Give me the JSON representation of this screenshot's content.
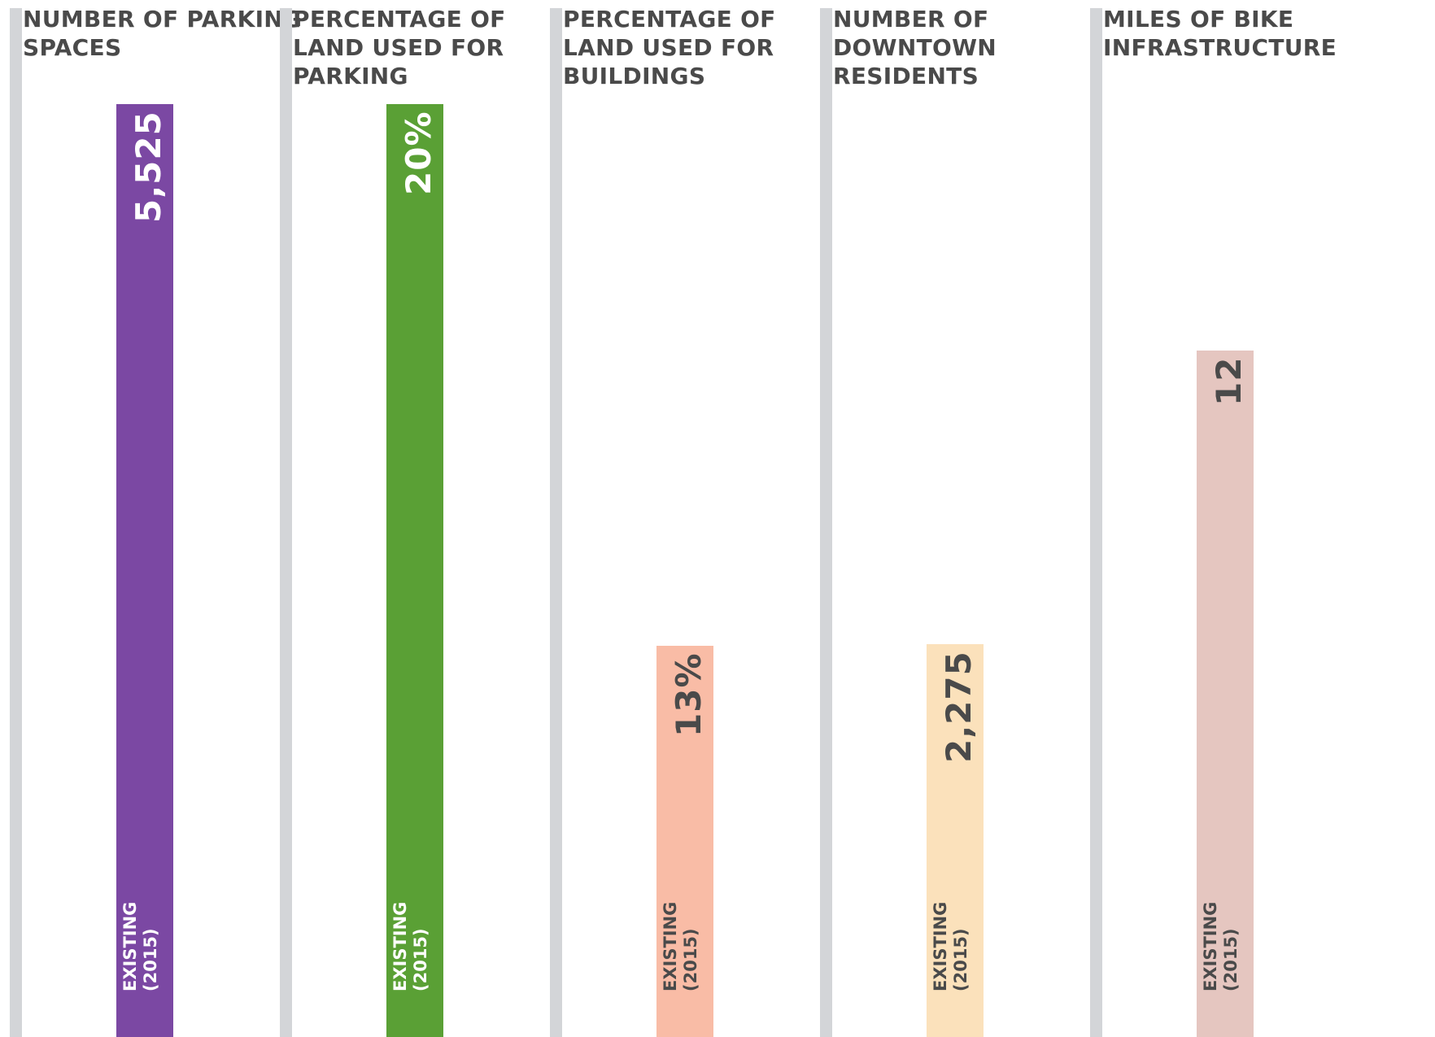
{
  "chart_data": [
    {
      "type": "bar",
      "title": "NUMBER OF PARKING SPACES",
      "categories": [
        "EXISTING (2015)"
      ],
      "values": [
        5525
      ],
      "value_label": "5,525",
      "ylim": [
        0,
        5525
      ],
      "bar_color": "#7b48a3",
      "text_color": "#ffffff"
    },
    {
      "type": "bar",
      "title": "PERCENTAGE OF LAND USED FOR PARKING",
      "categories": [
        "EXISTING (2015)"
      ],
      "values": [
        20
      ],
      "value_label": "20%",
      "ylim": [
        0,
        20
      ],
      "bar_color": "#5aa035",
      "text_color": "#ffffff"
    },
    {
      "type": "bar",
      "title": "PERCENTAGE OF LAND USED FOR BUILDINGS",
      "categories": [
        "EXISTING (2015)"
      ],
      "values": [
        13
      ],
      "value_label": "13%",
      "ylim": [
        0,
        31
      ],
      "bar_color": "#f9bca6",
      "text_color": "#4a4a4a"
    },
    {
      "type": "bar",
      "title": "NUMBER OF DOWNTOWN RESIDENTS",
      "categories": [
        "EXISTING (2015)"
      ],
      "values": [
        2275
      ],
      "value_label": "2,275",
      "ylim": [
        0,
        5400
      ],
      "bar_color": "#fbe1bb",
      "text_color": "#4a4a4a"
    },
    {
      "type": "bar",
      "title": "MILES OF BIKE INFRASTRUCTURE",
      "categories": [
        "EXISTING (2015)"
      ],
      "values": [
        12
      ],
      "value_label": "12",
      "ylim": [
        0,
        16.3
      ],
      "bar_color": "#e5c6c0",
      "text_color": "#4a4a4a"
    }
  ],
  "category_lines": [
    "EXISTING",
    "(2015)"
  ]
}
